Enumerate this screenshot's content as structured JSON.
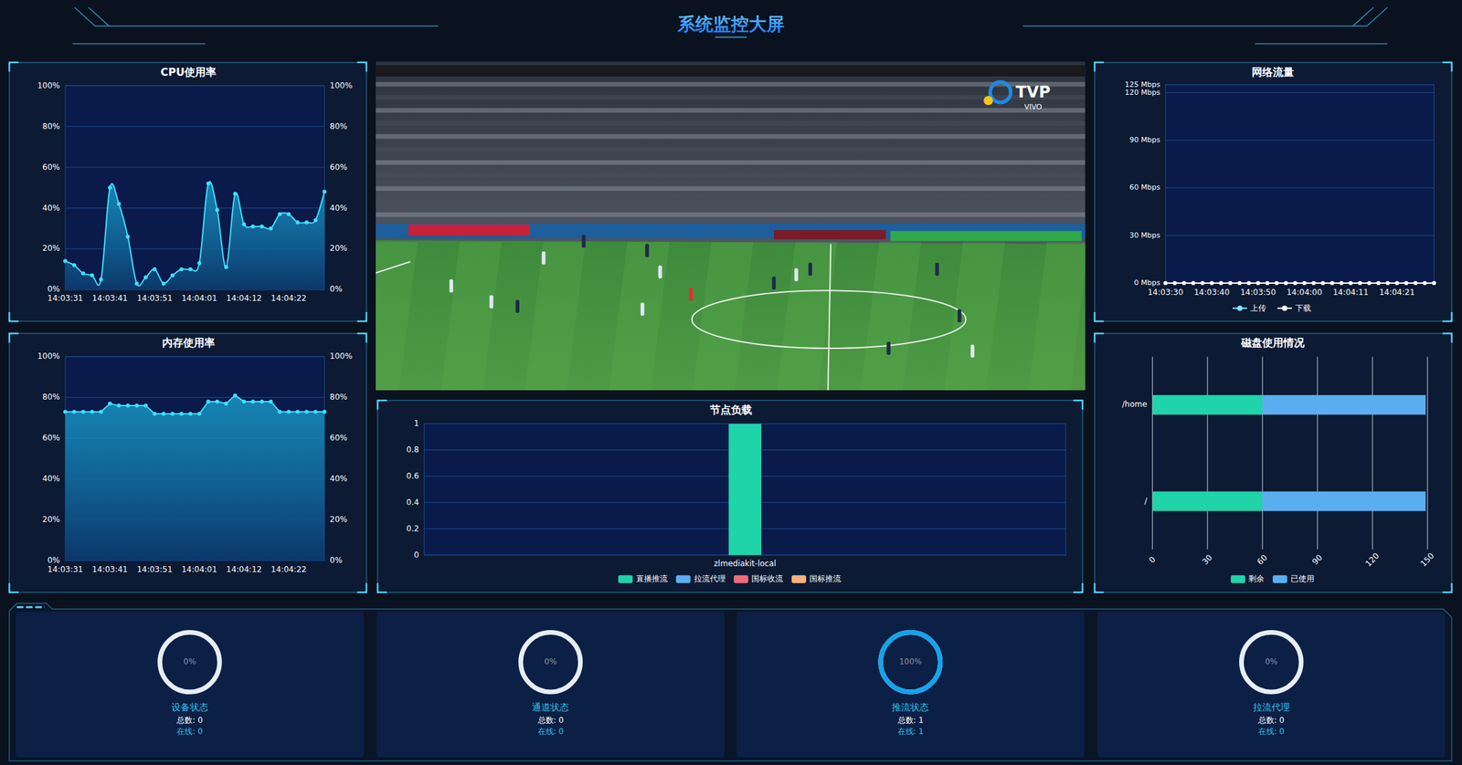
{
  "header": {
    "title": "系统监控大屏"
  },
  "video": {
    "logo": "TVP",
    "logo_sub": "VIVO"
  },
  "chart_data": [
    {
      "type": "area",
      "title": "CPU使用率",
      "categories": [
        "14:03:31",
        null,
        null,
        null,
        null,
        "14:03:41",
        null,
        null,
        null,
        null,
        "14:03:51",
        null,
        null,
        null,
        null,
        "14:04:01",
        null,
        null,
        null,
        null,
        "14:04:12",
        null,
        null,
        null,
        null,
        "14:04:22",
        null,
        null,
        null,
        null
      ],
      "values": [
        14,
        12,
        8,
        7,
        5,
        50,
        42,
        26,
        3,
        6,
        10,
        3,
        7,
        10,
        10,
        13,
        52,
        39,
        11,
        47,
        32,
        31,
        31,
        30,
        37,
        37,
        33,
        33,
        34,
        48
      ],
      "color": "#3ee0ff",
      "line_style": "smooth",
      "marker": "circle",
      "ylim": [
        0,
        100
      ],
      "yticks": [
        {
          "value": 0,
          "label": "0%"
        },
        {
          "value": 20,
          "label": "20%"
        },
        {
          "value": 40,
          "label": "40%"
        },
        {
          "value": 60,
          "label": "60%"
        },
        {
          "value": 80,
          "label": "80%"
        },
        {
          "value": 100,
          "label": "100%"
        }
      ],
      "y2lim": [
        0,
        100
      ],
      "y2ticks": [
        {
          "value": 0,
          "label": "0%"
        },
        {
          "value": 20,
          "label": "20%"
        },
        {
          "value": 40,
          "label": "40%"
        },
        {
          "value": 60,
          "label": "60%"
        },
        {
          "value": 80,
          "label": "80%"
        },
        {
          "value": 100,
          "label": "100%"
        }
      ],
      "grid": true
    },
    {
      "type": "area",
      "title": "内存使用率",
      "categories": [
        "14:03:31",
        null,
        null,
        null,
        null,
        "14:03:41",
        null,
        null,
        null,
        null,
        "14:03:51",
        null,
        null,
        null,
        null,
        "14:04:01",
        null,
        null,
        null,
        null,
        "14:04:12",
        null,
        null,
        null,
        null,
        "14:04:22",
        null,
        null,
        null,
        null
      ],
      "values": [
        73,
        73,
        73,
        73,
        73,
        77,
        76,
        76,
        76,
        76,
        72,
        72,
        72,
        72,
        72,
        72,
        78,
        78,
        77,
        81,
        78,
        78,
        78,
        78,
        73,
        73,
        73,
        73,
        73,
        73
      ],
      "color": "#3ee0ff",
      "line_style": "solid",
      "marker": "circle",
      "ylim": [
        0,
        100
      ],
      "yticks": [
        {
          "value": 0,
          "label": "0%"
        },
        {
          "value": 20,
          "label": "20%"
        },
        {
          "value": 40,
          "label": "40%"
        },
        {
          "value": 60,
          "label": "60%"
        },
        {
          "value": 80,
          "label": "80%"
        },
        {
          "value": 100,
          "label": "100%"
        }
      ],
      "y2lim": [
        0,
        100
      ],
      "y2ticks": [
        {
          "value": 0,
          "label": "0%"
        },
        {
          "value": 20,
          "label": "20%"
        },
        {
          "value": 40,
          "label": "40%"
        },
        {
          "value": 60,
          "label": "60%"
        },
        {
          "value": 80,
          "label": "80%"
        },
        {
          "value": 100,
          "label": "100%"
        }
      ],
      "grid": true
    },
    {
      "type": "line",
      "title": "网络流量",
      "categories": [
        "14:03:30",
        null,
        null,
        null,
        null,
        "14:03:40",
        null,
        null,
        null,
        null,
        "14:03:50",
        null,
        null,
        null,
        null,
        "14:04:00",
        null,
        null,
        null,
        null,
        "14:04:11",
        null,
        null,
        null,
        null,
        "14:04:21",
        null,
        null,
        null,
        null
      ],
      "series": [
        {
          "name": "上传",
          "color": "#7fe9ff",
          "values": [
            0,
            0,
            0,
            0,
            0,
            0,
            0,
            0,
            0,
            0,
            0,
            0,
            0,
            0,
            0,
            0,
            0,
            0,
            0,
            0,
            0,
            0,
            0,
            0,
            0,
            0,
            0,
            0,
            0,
            0
          ]
        },
        {
          "name": "下载",
          "color": "#ffffff",
          "values": [
            0,
            0,
            0,
            0,
            0,
            0,
            0,
            0,
            0,
            0,
            0,
            0,
            0,
            0,
            0,
            0,
            0,
            0,
            0,
            0,
            0,
            0,
            0,
            0,
            0,
            0,
            0,
            0,
            0,
            0
          ]
        }
      ],
      "marker": "circle",
      "line_style": "solid",
      "ylim": [
        0,
        125
      ],
      "yticks": [
        {
          "value": 0,
          "label": "0 Mbps"
        },
        {
          "value": 30,
          "label": "30 Mbps"
        },
        {
          "value": 60,
          "label": "60 Mbps"
        },
        {
          "value": 90,
          "label": "90 Mbps"
        },
        {
          "value": 120,
          "label": "120 Mbps"
        },
        {
          "value": 125,
          "label": "125 Mbps"
        }
      ],
      "grid": true,
      "legend": "bottom"
    },
    {
      "type": "bar",
      "title": "节点负载",
      "categories": [
        "zlmediakit-local"
      ],
      "series": [
        {
          "name": "直播推流",
          "color": "#1fd4a8",
          "values": [
            1
          ]
        },
        {
          "name": "拉流代理",
          "color": "#5aaef0",
          "values": [
            0
          ]
        },
        {
          "name": "国标收流",
          "color": "#ef6b7b",
          "values": [
            0
          ]
        },
        {
          "name": "国标推流",
          "color": "#f7b27a",
          "values": [
            0
          ]
        }
      ],
      "ylim": [
        0,
        1
      ],
      "yticks": [
        0,
        0.2,
        0.4,
        0.6,
        0.8,
        1
      ],
      "grid": true,
      "stacked": true,
      "legend": "bottom"
    },
    {
      "type": "bar",
      "title": "磁盘使用情况",
      "orientation": "horizontal",
      "categories": [
        "/home",
        "/"
      ],
      "series": [
        {
          "name": "剩余",
          "color": "#1fd4a8",
          "values": [
            60,
            60
          ]
        },
        {
          "name": "已使用",
          "color": "#5aaef0",
          "values": [
            89,
            89
          ]
        }
      ],
      "xlim": [
        0,
        150
      ],
      "xticks": [
        0,
        30,
        60,
        90,
        120,
        150
      ],
      "grid": true,
      "stacked": true,
      "legend": "bottom"
    }
  ],
  "status_cards": [
    {
      "title": "设备状态",
      "percent": 0,
      "percent_label": "0%",
      "total_text": "总数: 0",
      "online_text": "在线: 0"
    },
    {
      "title": "通道状态",
      "percent": 0,
      "percent_label": "0%",
      "total_text": "总数: 0",
      "online_text": "在线: 0"
    },
    {
      "title": "推流状态",
      "percent": 100,
      "percent_label": "100%",
      "total_text": "总数: 1",
      "online_text": "在线: 1"
    },
    {
      "title": "拉流代理",
      "percent": 0,
      "percent_label": "0%",
      "total_text": "总数: 0",
      "online_text": "在线: 0"
    }
  ]
}
